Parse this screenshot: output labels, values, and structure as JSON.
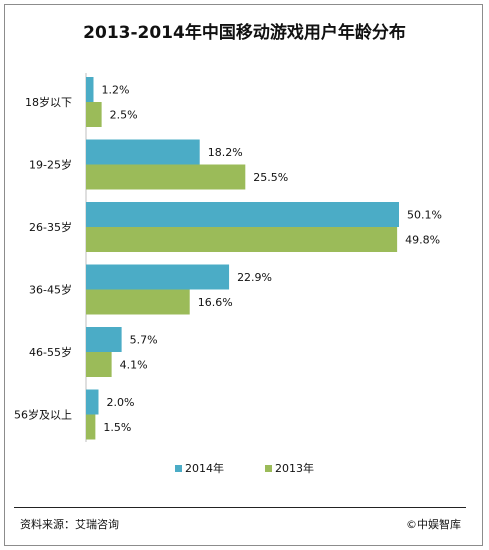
{
  "title": "2013-2014年中国移动游戏用户年龄分布",
  "source": "资料来源：艾瑞咨询",
  "watermark": "©中娱智库",
  "colors": {
    "2014年": "#4bacc6",
    "2013年": "#9bbb59"
  },
  "chart_data": {
    "type": "bar",
    "orientation": "horizontal",
    "title": "2013-2014年中国移动游戏用户年龄分布",
    "categories": [
      "18岁以下",
      "19-25岁",
      "26-35岁",
      "36-45岁",
      "46-55岁",
      "56岁及以上"
    ],
    "series": [
      {
        "name": "2014年",
        "values": [
          1.2,
          18.2,
          50.1,
          22.9,
          5.7,
          2.0
        ],
        "labels": [
          "1.2%",
          "18.2%",
          "50.1%",
          "22.9%",
          "5.7%",
          "2.0%"
        ]
      },
      {
        "name": "2013年",
        "values": [
          2.5,
          25.5,
          49.8,
          16.6,
          4.1,
          1.5
        ],
        "labels": [
          "2.5%",
          "25.5%",
          "49.8%",
          "16.6%",
          "4.1%",
          "1.5%"
        ]
      }
    ],
    "unit": "%",
    "xlim": [
      0,
      50.1
    ],
    "grid": false,
    "legend": "bottom-center"
  }
}
